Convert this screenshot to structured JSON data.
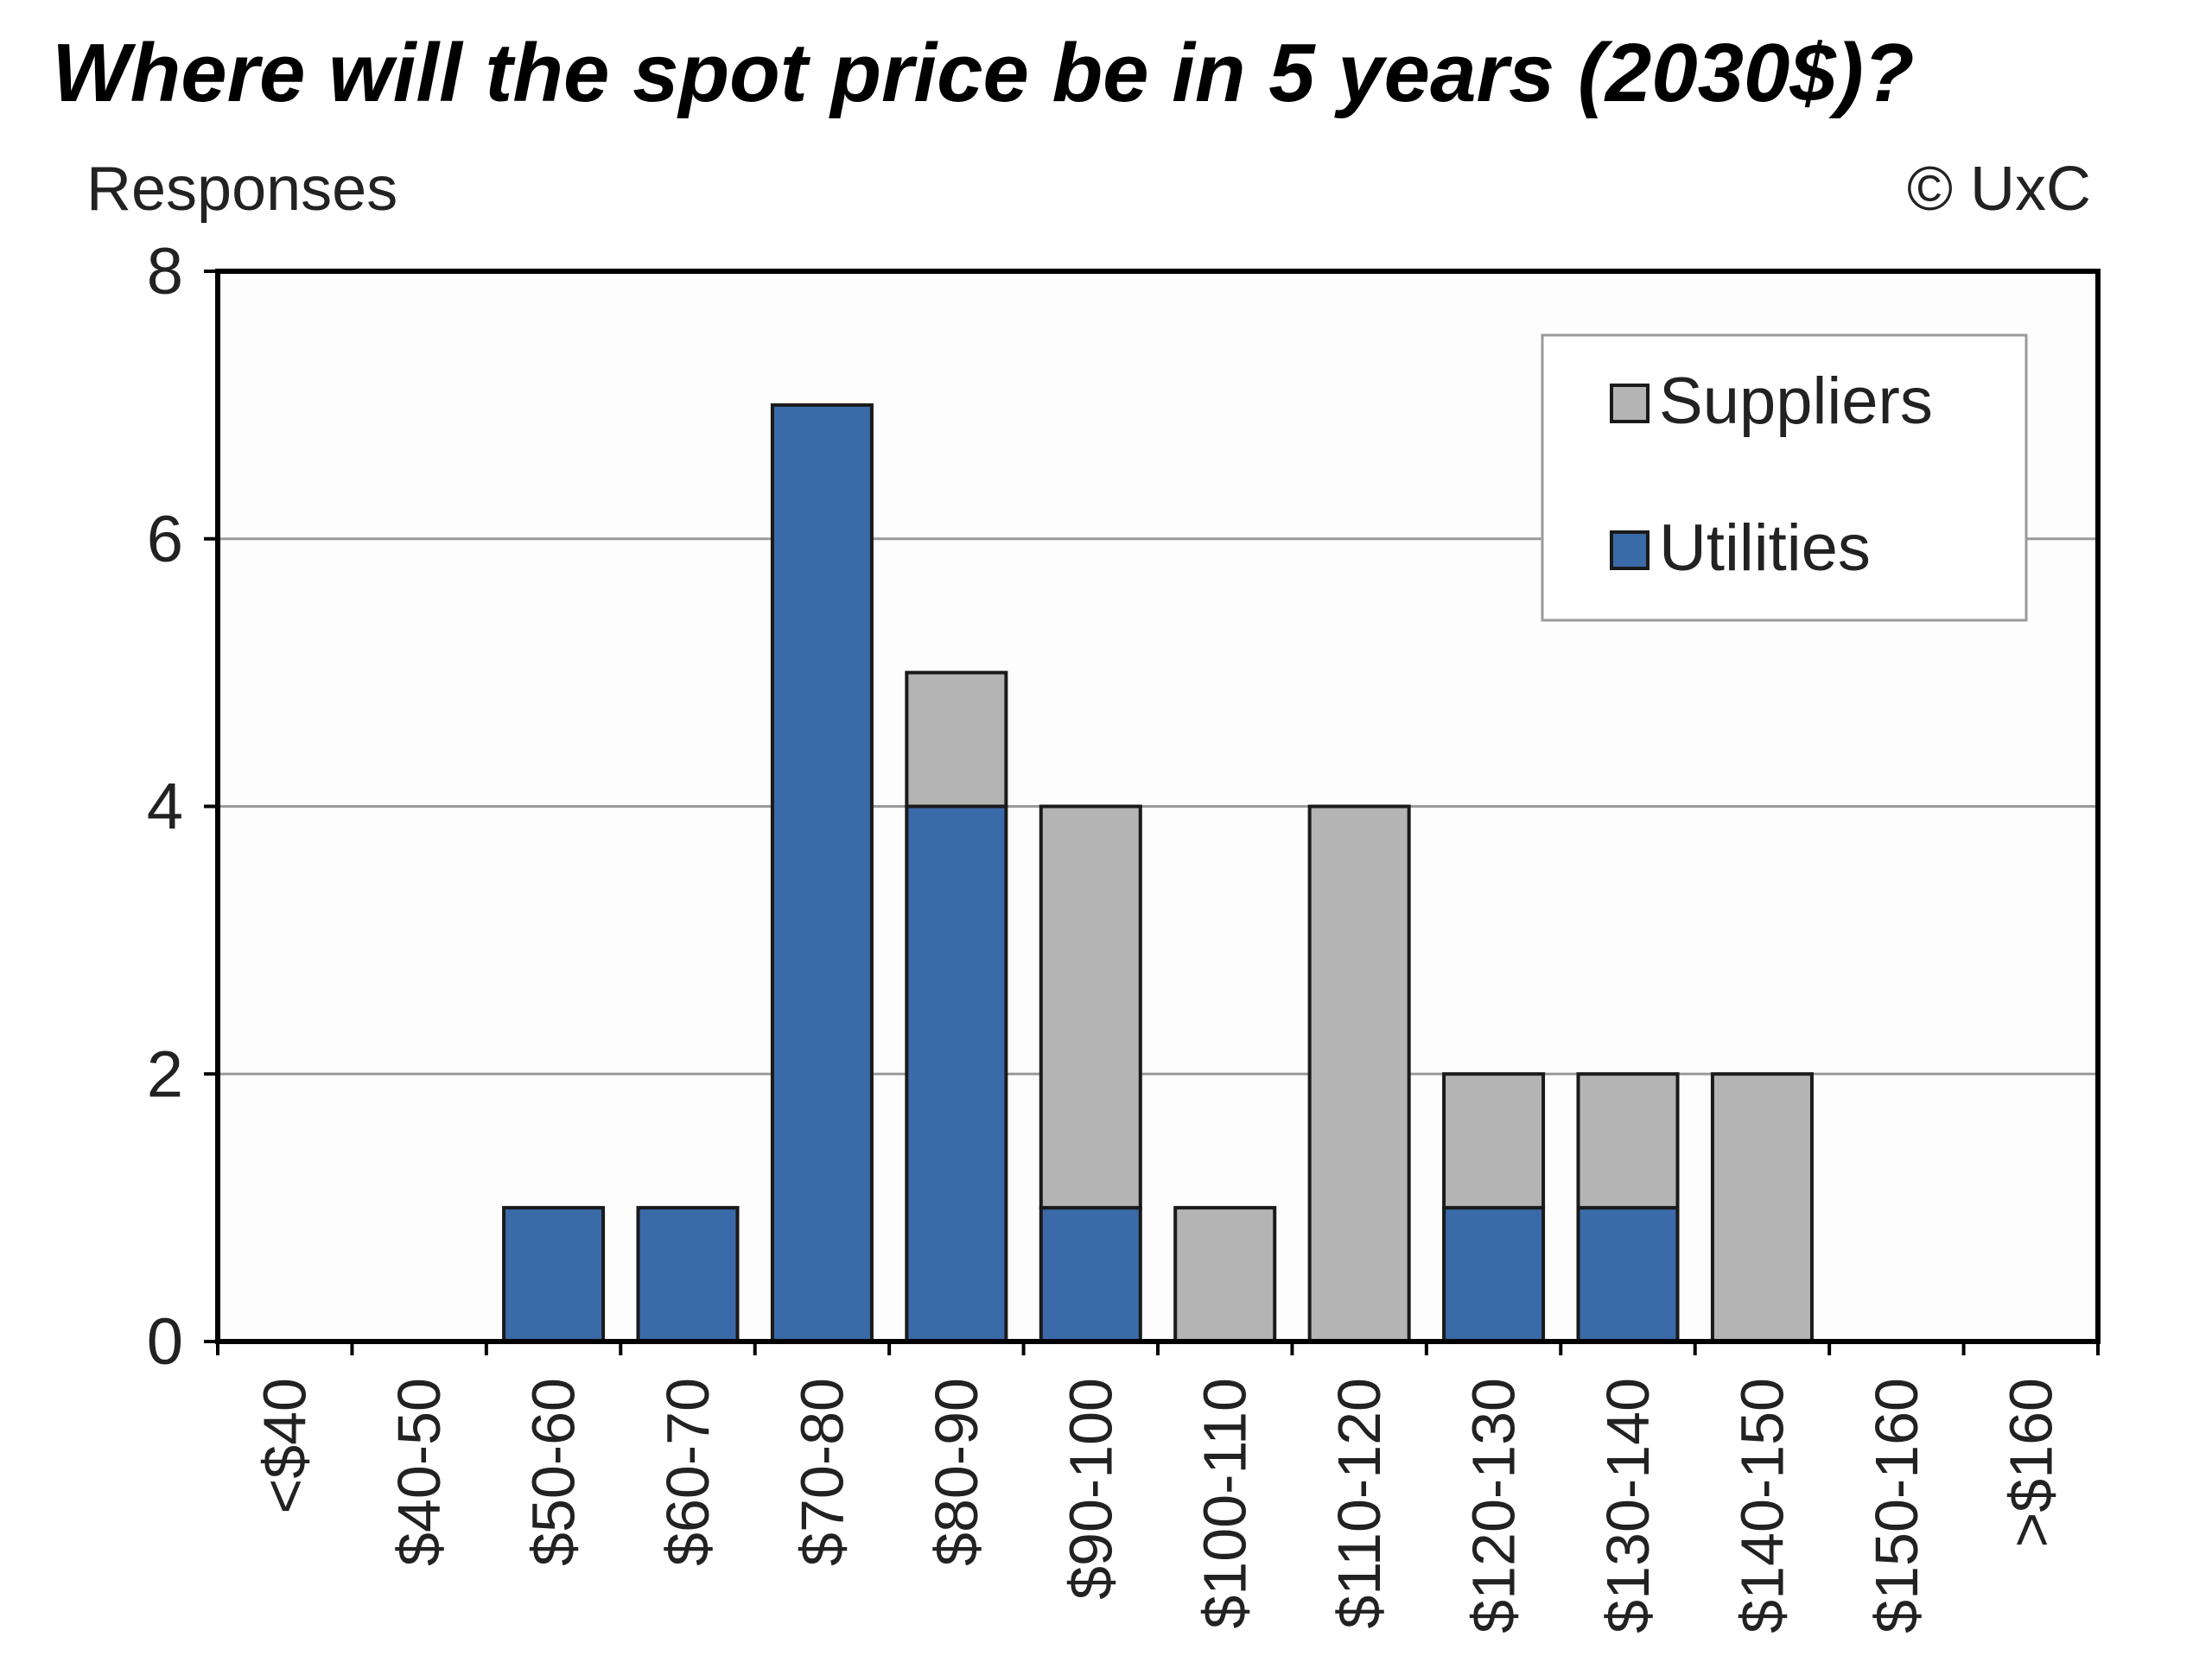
{
  "chart_data": {
    "type": "bar",
    "stacked": true,
    "title": "Where will the spot price be in 5 years (2030$)?",
    "ylabel": "Responses",
    "xlabel": "",
    "copyright": "© UxC",
    "ylim": [
      0,
      8
    ],
    "yticks": [
      0,
      2,
      4,
      6,
      8
    ],
    "grid": true,
    "legend_position": "top-right",
    "categories": [
      "<$40",
      "$40-50",
      "$50-60",
      "$60-70",
      "$70-80",
      "$80-90",
      "$90-100",
      "$100-110",
      "$110-120",
      "$120-130",
      "$130-140",
      "$140-150",
      "$150-160",
      ">$160"
    ],
    "series": [
      {
        "name": "Utilities",
        "color": "#3a6aa8",
        "values": [
          0,
          0,
          1,
          1,
          7,
          4,
          1,
          0,
          0,
          1,
          1,
          0,
          0,
          0
        ]
      },
      {
        "name": "Suppliers",
        "color": "#b4b4b4",
        "values": [
          0,
          0,
          0,
          0,
          0,
          1,
          3,
          1,
          4,
          1,
          1,
          2,
          0,
          0
        ]
      }
    ],
    "legend_order": [
      "Suppliers",
      "Utilities"
    ]
  }
}
